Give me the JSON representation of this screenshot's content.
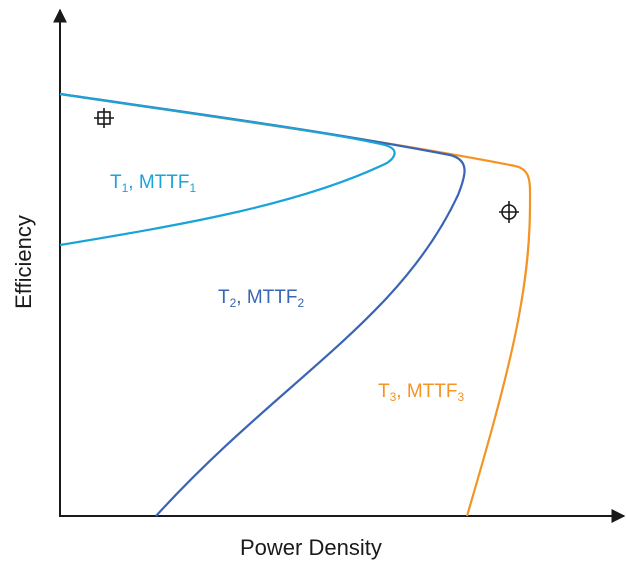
{
  "axes": {
    "x_label": "Power Density",
    "y_label": "Efficiency"
  },
  "curves": [
    {
      "id": "t1",
      "label_main": "T",
      "label_sub1": "1",
      "label_mid": ", MTTF",
      "label_sub2": "1",
      "color": "#1aa3d9"
    },
    {
      "id": "t2",
      "label_main": "T",
      "label_sub1": "2",
      "label_mid": ", MTTF",
      "label_sub2": "2",
      "color": "#3a64b4"
    },
    {
      "id": "t3",
      "label_main": "T",
      "label_sub1": "3",
      "label_mid": ", MTTF",
      "label_sub2": "3",
      "color": "#f39424"
    }
  ],
  "markers": [
    {
      "id": "square-crosshair",
      "icon": "square-crosshair-icon"
    },
    {
      "id": "circle-crosshair",
      "icon": "circle-crosshair-icon"
    }
  ],
  "colors": {
    "axis": "#1a1a1a",
    "t1": "#1aa3d9",
    "t2": "#3a64b4",
    "t3": "#f39424"
  }
}
